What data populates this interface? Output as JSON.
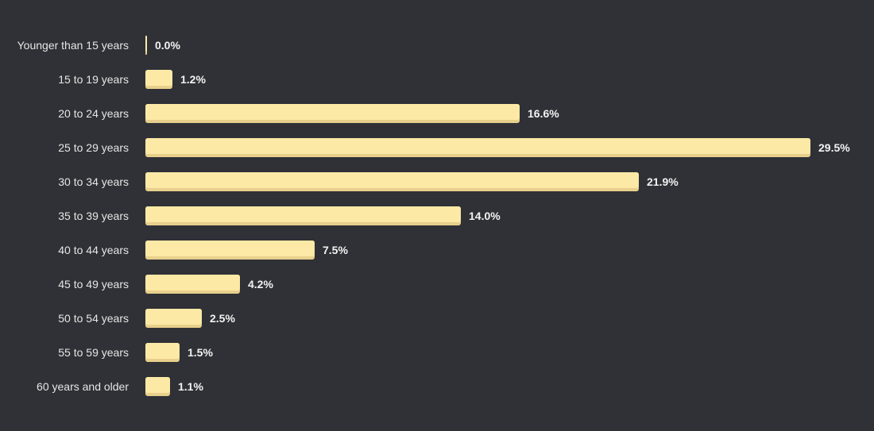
{
  "chart_data": {
    "type": "bar",
    "orientation": "horizontal",
    "categories": [
      "Younger than 15 years",
      "15 to 19 years",
      "20 to 24 years",
      "25 to 29 years",
      "30 to 34 years",
      "35 to 39 years",
      "40 to 44 years",
      "45 to 49 years",
      "50 to 54 years",
      "55 to 59 years",
      "60 years and older"
    ],
    "values": [
      0.0,
      1.2,
      16.6,
      29.5,
      21.9,
      14.0,
      7.5,
      4.2,
      2.5,
      1.5,
      1.1
    ],
    "value_labels": [
      "0.0%",
      "1.2%",
      "16.6%",
      "29.5%",
      "21.9%",
      "14.0%",
      "7.5%",
      "4.2%",
      "2.5%",
      "1.5%",
      "1.1%"
    ],
    "unit": "%",
    "xlim": [
      0,
      29.5
    ],
    "title": "",
    "xlabel": "",
    "ylabel": "",
    "grid": false,
    "legend": "none",
    "colors": {
      "background": "#2f3136",
      "bar": "#fde9a6",
      "bar_shadow": "#e8d08c",
      "text": "#e6e6e6"
    }
  }
}
